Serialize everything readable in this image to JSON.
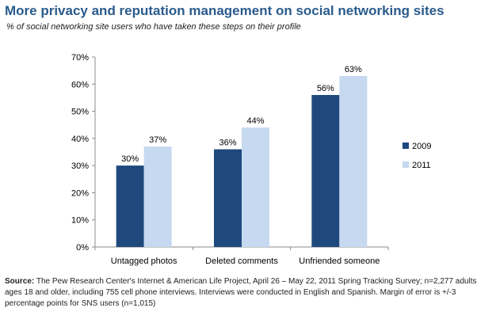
{
  "header": {
    "title": "More privacy and reputation management on social networking sites",
    "subtitle": "% of social networking site users who have taken these steps on their profile"
  },
  "footer": {
    "source_label": "Source:",
    "source_text": "The Pew Research Center's Internet & American Life Project, April 26 – May 22, 2011 Spring Tracking Survey; n=2,277 adults ages 18 and older, including 755 cell phone interviews. Interviews were conducted in English and Spanish. Margin of error is +/-3 percentage points for SNS users (n=1,015)"
  },
  "chart_data": {
    "type": "bar",
    "categories": [
      "Untagged photos",
      "Deleted comments",
      "Unfriended someone"
    ],
    "series": [
      {
        "name": "2009",
        "values": [
          30,
          36,
          56
        ],
        "labels": [
          "30%",
          "36%",
          "56%"
        ],
        "color": "#1f497d"
      },
      {
        "name": "2011",
        "values": [
          37,
          44,
          63
        ],
        "labels": [
          "37%",
          "44%",
          "63%"
        ],
        "color": "#c6d9f1"
      }
    ],
    "ylim": [
      0,
      70
    ],
    "yticks": [
      0,
      10,
      20,
      30,
      40,
      50,
      60,
      70
    ],
    "ytick_labels": [
      "0%",
      "10%",
      "20%",
      "30%",
      "40%",
      "50%",
      "60%",
      "70%"
    ],
    "grid": false,
    "legend_position": "right",
    "xlabel": "",
    "ylabel": ""
  }
}
